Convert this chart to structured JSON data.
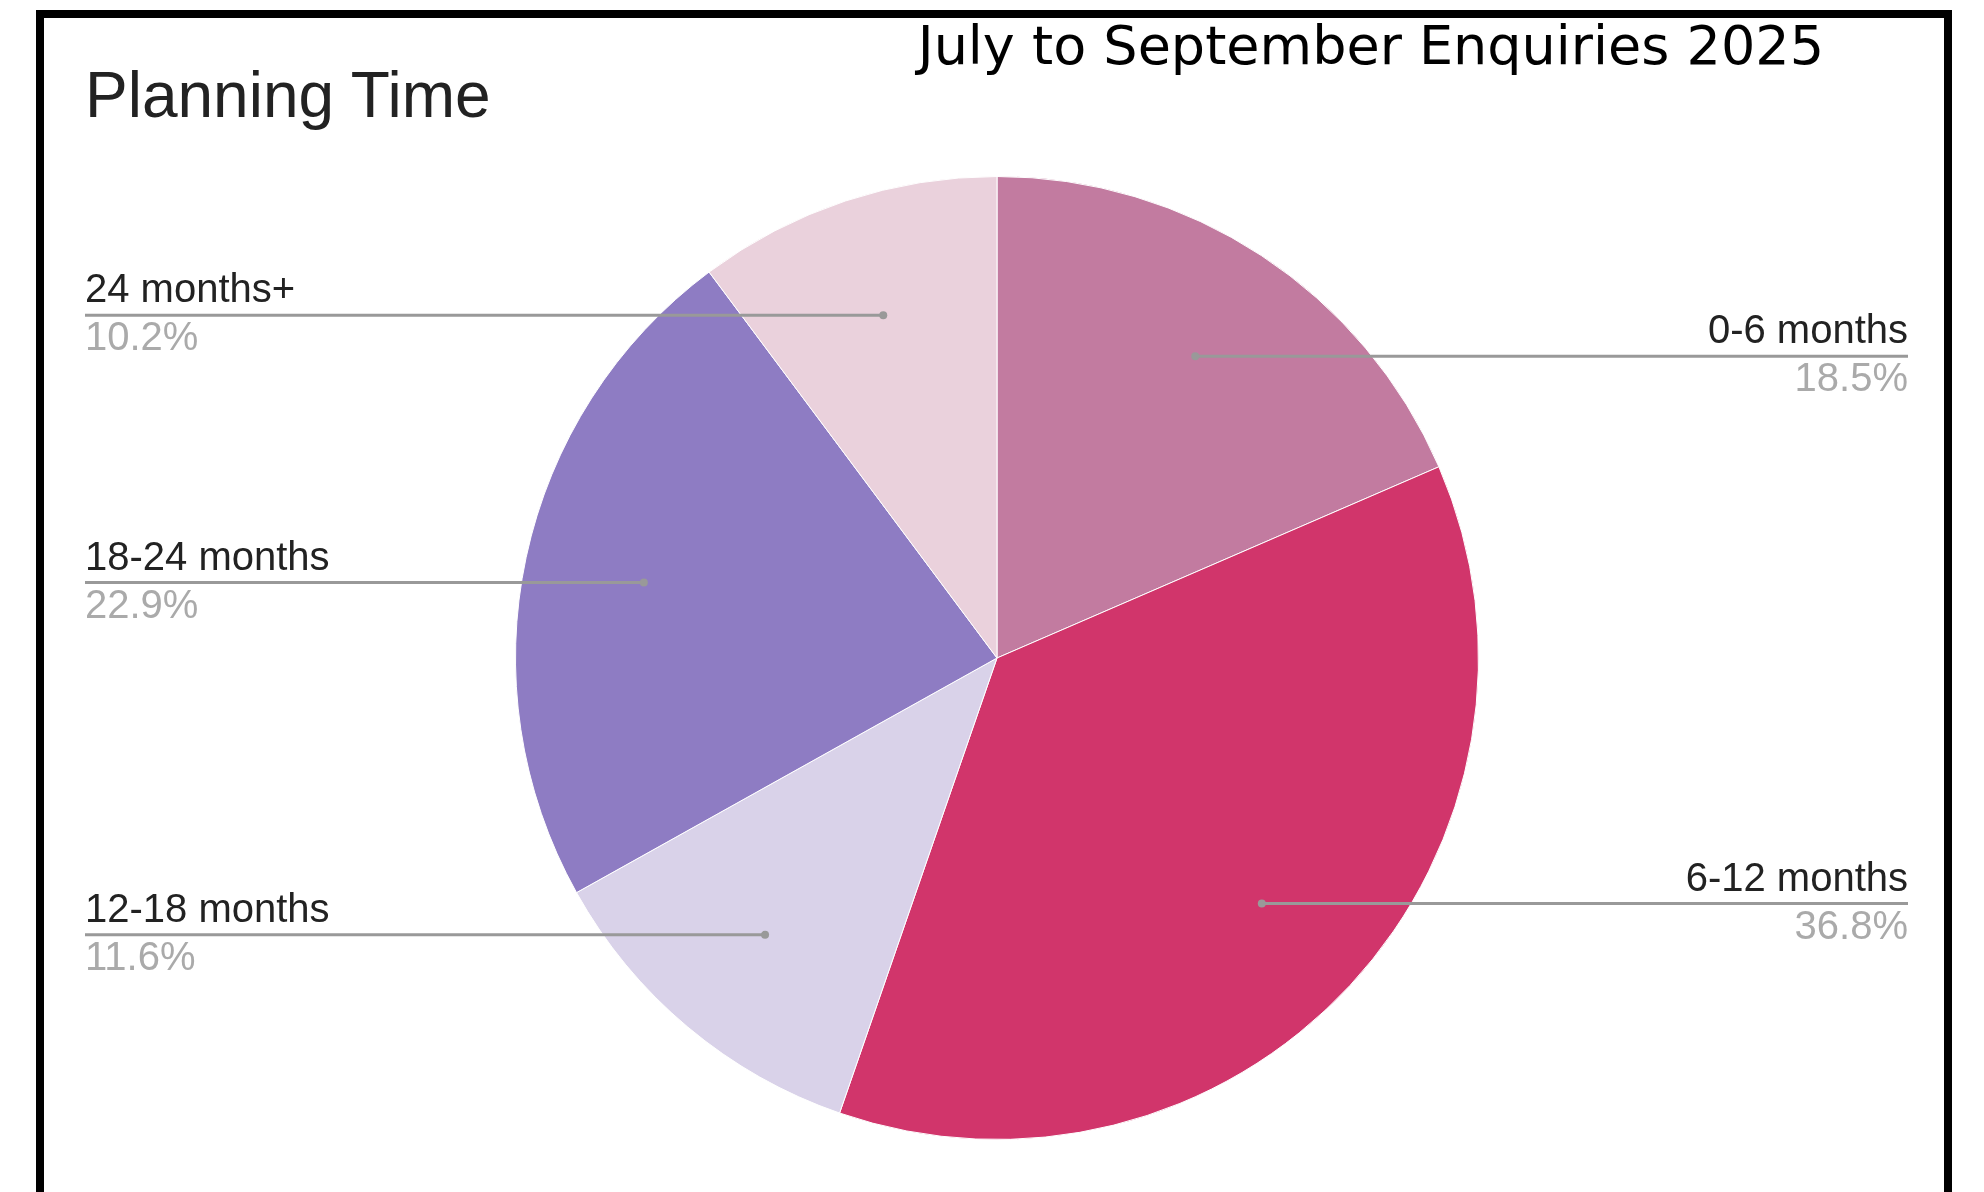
{
  "chart_data": {
    "type": "pie",
    "title": "Planning Time",
    "subtitle": "July to September Enquiries 2025",
    "categories": [
      "0-6 months",
      "6-12 months",
      "12-18 months",
      "18-24 months",
      "24 months+"
    ],
    "values": [
      18.5,
      36.8,
      11.6,
      22.9,
      10.2
    ],
    "value_labels": [
      "18.5%",
      "36.8%",
      "11.6%",
      "22.9%",
      "10.2%"
    ],
    "colors": [
      "#c27ba0",
      "#d1356b",
      "#d9d2e9",
      "#8e7cc3",
      "#ead1dc"
    ],
    "legend": false
  }
}
